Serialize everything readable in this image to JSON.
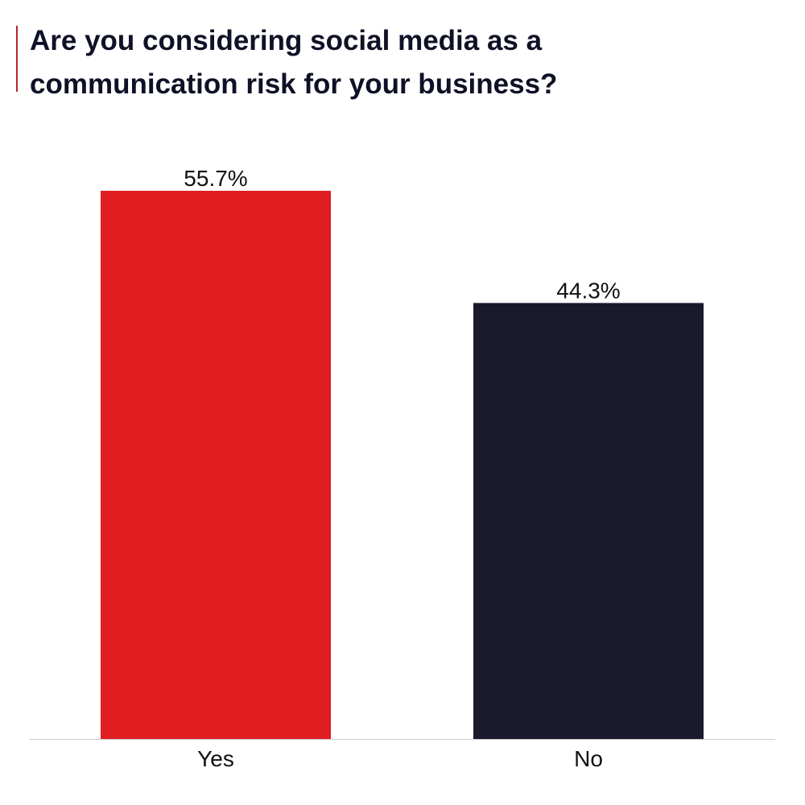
{
  "chart_data": {
    "type": "bar",
    "title": "Are you considering social media as a communication risk for your business?",
    "categories": [
      "Yes",
      "No"
    ],
    "values": [
      55.7,
      44.3
    ],
    "value_labels": [
      "55.7%",
      "44.3%"
    ],
    "colors": [
      "#e01e21",
      "#1a1a2f"
    ],
    "xlabel": "",
    "ylabel": "",
    "ylim": [
      0,
      55.7
    ],
    "grid": false,
    "legend": "none"
  },
  "colors": {
    "title": "#0f1126",
    "title_accent": "#b5272d",
    "baseline": "#cccccc",
    "text": "#111111"
  }
}
